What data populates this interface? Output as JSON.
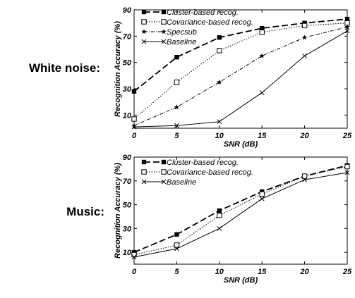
{
  "chart_data": [
    {
      "type": "line",
      "side_label": "White noise:",
      "xlabel": "SNR (dB)",
      "ylabel": "Recognition Accuracy (%)",
      "x": [
        0,
        5,
        10,
        15,
        20,
        25
      ],
      "x_ticks": [
        "0",
        "5",
        "10",
        "15",
        "20",
        "25"
      ],
      "y_ticks": [
        "10",
        "30",
        "50",
        "70",
        "90"
      ],
      "xlim": [
        0,
        25
      ],
      "ylim": [
        0,
        90
      ],
      "grid": false,
      "legend_position": "top-left",
      "series": [
        {
          "name": "Cluster-based recog.",
          "values": [
            28,
            54,
            69,
            76,
            80,
            83
          ],
          "style": "dashed",
          "marker": "filled-square"
        },
        {
          "name": "Covariance-based recog.",
          "values": [
            7,
            35,
            59,
            73,
            78,
            80
          ],
          "style": "dotted",
          "marker": "open-square"
        },
        {
          "name": "Specsub",
          "values": [
            2,
            16,
            35,
            55,
            69,
            77
          ],
          "style": "dashdot",
          "marker": "star"
        },
        {
          "name": "Baseline",
          "values": [
            1,
            2,
            5,
            27,
            55,
            74
          ],
          "style": "solid",
          "marker": "x"
        }
      ]
    },
    {
      "type": "line",
      "side_label": "Music:",
      "xlabel": "SNR (dB)",
      "ylabel": "Recognition Accuracy (%)",
      "x": [
        0,
        5,
        10,
        15,
        20,
        25
      ],
      "x_ticks": [
        "0",
        "5",
        "10",
        "15",
        "20",
        "25"
      ],
      "y_ticks": [
        "10",
        "30",
        "50",
        "70",
        "90"
      ],
      "xlim": [
        0,
        25
      ],
      "ylim": [
        0,
        90
      ],
      "grid": false,
      "legend_position": "top-left",
      "series": [
        {
          "name": "Cluster-based recog.",
          "values": [
            10,
            25,
            45,
            61,
            74,
            83
          ],
          "style": "dashed",
          "marker": "filled-square"
        },
        {
          "name": "Covariance-based recog.",
          "values": [
            8,
            16,
            41,
            59,
            74,
            82
          ],
          "style": "dotted",
          "marker": "open-square"
        },
        {
          "name": "Baseline",
          "values": [
            6,
            13,
            30,
            55,
            71,
            77
          ],
          "style": "solid",
          "marker": "x"
        }
      ]
    }
  ]
}
